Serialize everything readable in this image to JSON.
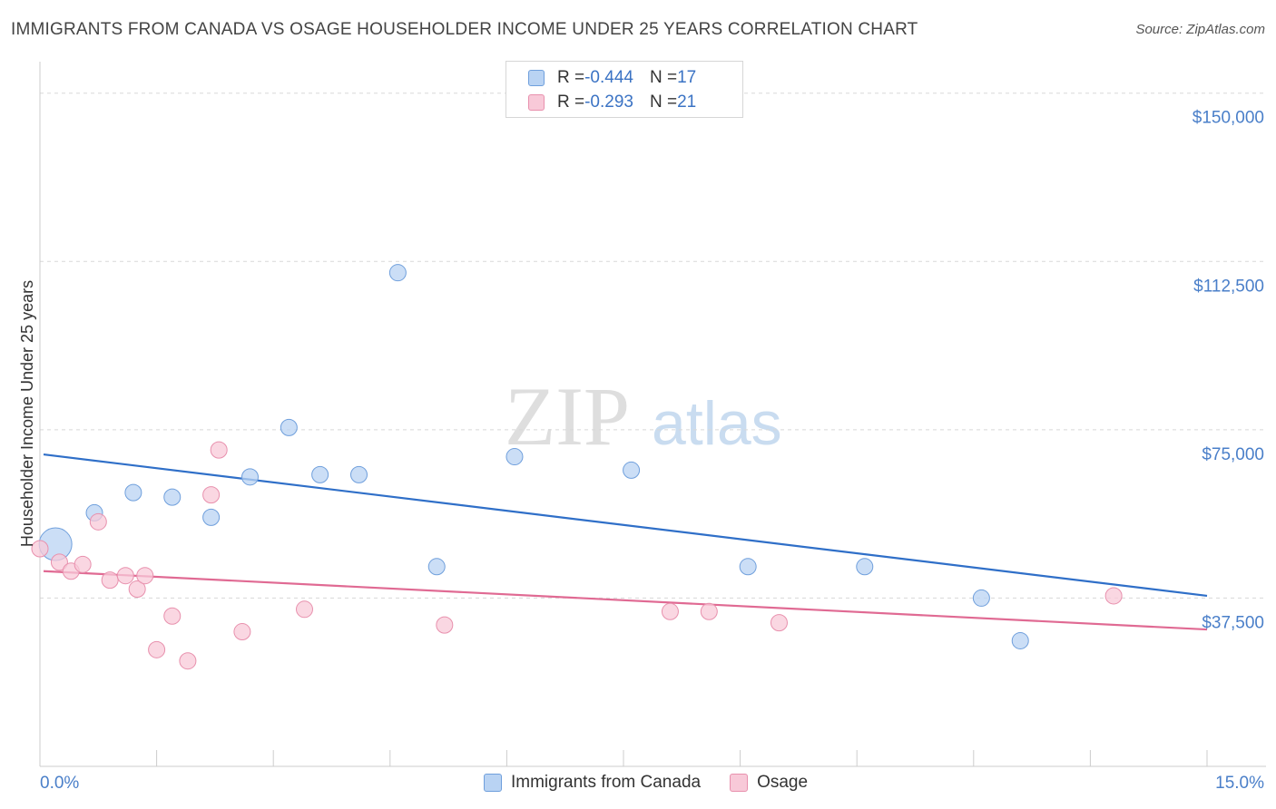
{
  "header": {
    "title": "IMMIGRANTS FROM CANADA VS OSAGE HOUSEHOLDER INCOME UNDER 25 YEARS CORRELATION CHART",
    "source": "Source: ZipAtlas.com"
  },
  "watermark": {
    "zip": "ZIP",
    "atlas": "atlas"
  },
  "legend": {
    "series1": {
      "r_label": "R = ",
      "r_value": "-0.444",
      "n_label": "N = ",
      "n_value": "17"
    },
    "series2": {
      "r_label": "R = ",
      "r_value": "-0.293",
      "n_label": "N = ",
      "n_value": "21"
    }
  },
  "colors": {
    "blue_fill": "#b9d3f3",
    "blue_stroke": "#6f9fdc",
    "blue_line": "#2f6fc8",
    "pink_fill": "#f8c9d8",
    "pink_stroke": "#e890ad",
    "pink_line": "#e06a93"
  },
  "chart_data": {
    "type": "scatter",
    "title": "IMMIGRANTS FROM CANADA VS OSAGE HOUSEHOLDER INCOME UNDER 25 YEARS CORRELATION CHART",
    "xlabel": "",
    "ylabel": "Householder Income Under 25 years",
    "xlim": [
      0,
      15
    ],
    "ylim": [
      0,
      155000
    ],
    "x_tick_labels": [
      "0.0%",
      "15.0%"
    ],
    "y_ticks": [
      37500,
      75000,
      112500,
      150000
    ],
    "y_tick_labels": [
      "$37,500",
      "$75,000",
      "$112,500",
      "$150,000"
    ],
    "grid": "horizontal dashed",
    "legend_position": "top-center",
    "series": [
      {
        "name": "Immigrants from Canada",
        "color": "#6f9fdc",
        "points": [
          {
            "x": 0.2,
            "y": 49500,
            "size": 36
          },
          {
            "x": 0.7,
            "y": 56500
          },
          {
            "x": 1.2,
            "y": 61000
          },
          {
            "x": 1.7,
            "y": 60000
          },
          {
            "x": 2.2,
            "y": 55500
          },
          {
            "x": 2.7,
            "y": 64500
          },
          {
            "x": 3.2,
            "y": 75500
          },
          {
            "x": 3.6,
            "y": 65000
          },
          {
            "x": 4.1,
            "y": 65000
          },
          {
            "x": 4.6,
            "y": 110000
          },
          {
            "x": 5.1,
            "y": 44500
          },
          {
            "x": 6.1,
            "y": 69000
          },
          {
            "x": 7.6,
            "y": 66000
          },
          {
            "x": 9.1,
            "y": 44500
          },
          {
            "x": 10.6,
            "y": 44500
          },
          {
            "x": 12.1,
            "y": 37500
          },
          {
            "x": 12.6,
            "y": 28000
          }
        ],
        "trendline": {
          "x": [
            0,
            15
          ],
          "y": [
            69500,
            38000
          ]
        }
      },
      {
        "name": "Osage",
        "color": "#e890ad",
        "points": [
          {
            "x": 0.0,
            "y": 48500
          },
          {
            "x": 0.25,
            "y": 45500
          },
          {
            "x": 0.4,
            "y": 43500
          },
          {
            "x": 0.55,
            "y": 45000
          },
          {
            "x": 0.75,
            "y": 54500
          },
          {
            "x": 0.9,
            "y": 41500
          },
          {
            "x": 1.1,
            "y": 42500
          },
          {
            "x": 1.25,
            "y": 39500
          },
          {
            "x": 1.35,
            "y": 42500
          },
          {
            "x": 1.5,
            "y": 26000
          },
          {
            "x": 1.7,
            "y": 33500
          },
          {
            "x": 1.9,
            "y": 23500
          },
          {
            "x": 2.2,
            "y": 60500
          },
          {
            "x": 2.3,
            "y": 70500
          },
          {
            "x": 2.6,
            "y": 30000
          },
          {
            "x": 3.4,
            "y": 35000
          },
          {
            "x": 5.2,
            "y": 31500
          },
          {
            "x": 8.1,
            "y": 34500
          },
          {
            "x": 8.6,
            "y": 34500
          },
          {
            "x": 9.5,
            "y": 32000
          },
          {
            "x": 13.8,
            "y": 38000
          }
        ],
        "trendline": {
          "x": [
            0,
            15
          ],
          "y": [
            43500,
            30500
          ]
        }
      }
    ]
  }
}
